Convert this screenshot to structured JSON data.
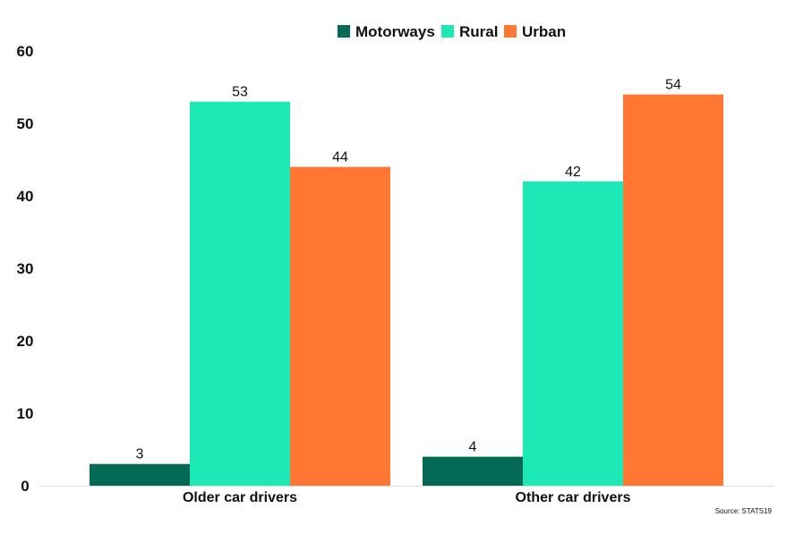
{
  "chart_data": {
    "type": "bar",
    "categories": [
      "Older car drivers",
      "Other car drivers"
    ],
    "series": [
      {
        "name": "Motorways",
        "values": [
          3,
          4
        ],
        "color": "#046a55"
      },
      {
        "name": "Rural",
        "values": [
          53,
          42
        ],
        "color": "#1de9b6"
      },
      {
        "name": "Urban",
        "values": [
          44,
          54
        ],
        "color": "#ff7733"
      }
    ],
    "ylim": [
      0,
      60
    ],
    "yticks": [
      0,
      10,
      20,
      30,
      40,
      50,
      60
    ],
    "grid": false,
    "legend_position": "top-center",
    "data_labels": true,
    "source": "Source: STATS19"
  }
}
